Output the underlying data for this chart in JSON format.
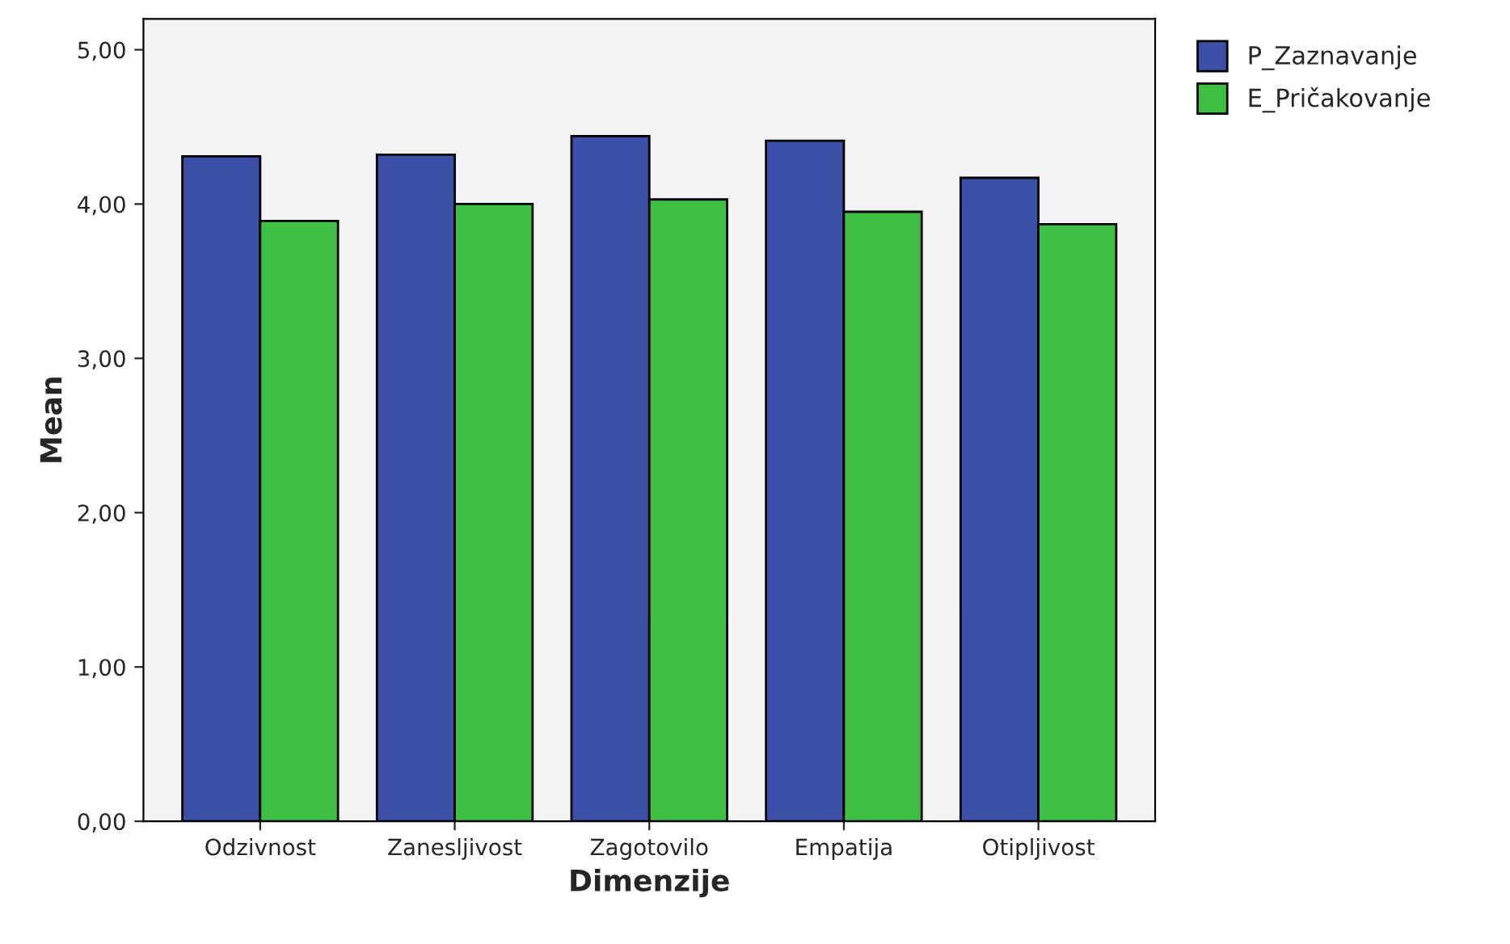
{
  "chart_data": {
    "type": "bar",
    "xlabel": "Dimenzije",
    "ylabel": "Mean",
    "categories": [
      "Odzivnost",
      "Zanesljivost",
      "Zagotovilo",
      "Empatija",
      "Otipljivost"
    ],
    "series": [
      {
        "name": "P_Zaznavanje",
        "color": "#3b4fa8",
        "values": [
          4.31,
          4.32,
          4.44,
          4.41,
          4.17
        ]
      },
      {
        "name": "E_Pričakovanje",
        "color": "#3ec143",
        "values": [
          3.89,
          4.0,
          4.03,
          3.95,
          3.87
        ]
      }
    ],
    "ylim": [
      0,
      5.2
    ],
    "yticks": [
      {
        "value": 0,
        "label": "0,00"
      },
      {
        "value": 1,
        "label": "1,00"
      },
      {
        "value": 2,
        "label": "2,00"
      },
      {
        "value": 3,
        "label": "3,00"
      },
      {
        "value": 4,
        "label": "4,00"
      },
      {
        "value": 5,
        "label": "5,00"
      }
    ],
    "grid": false,
    "legend": "top right"
  }
}
